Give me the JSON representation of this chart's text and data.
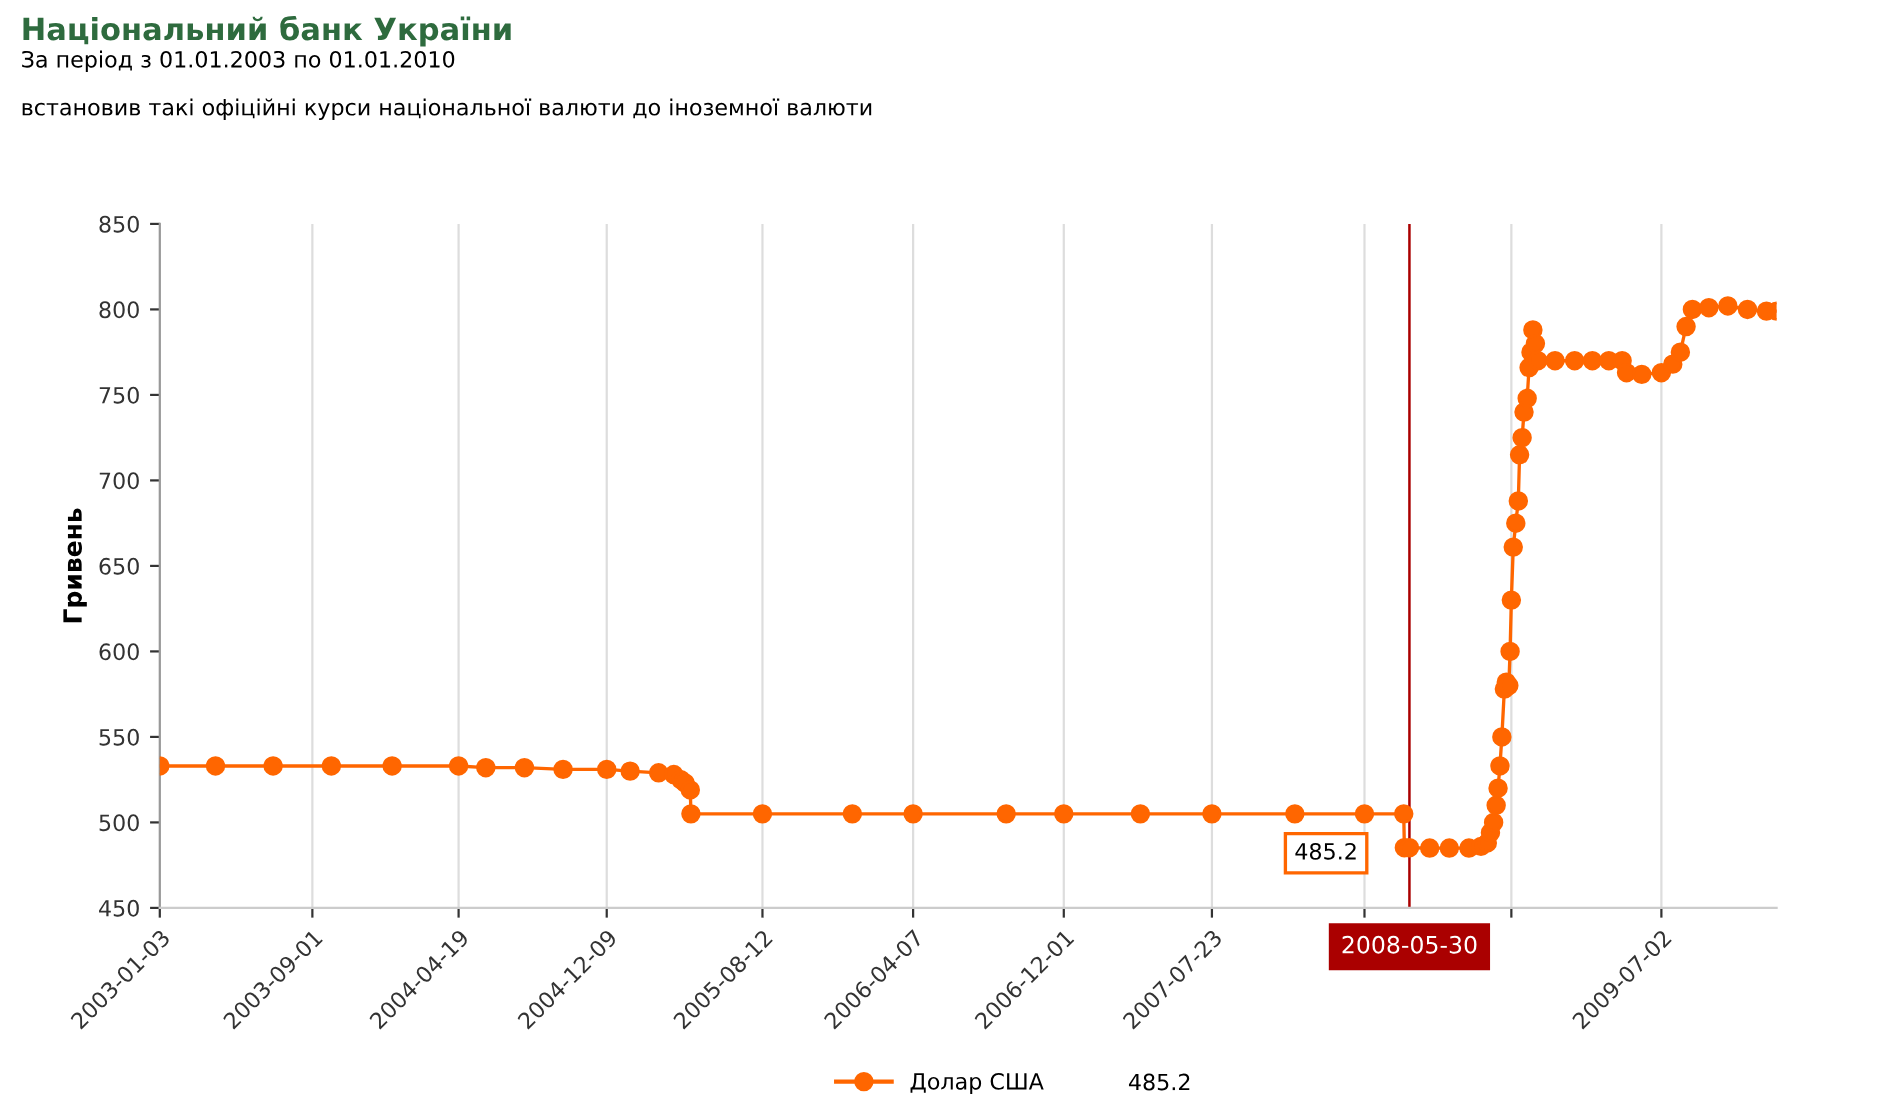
{
  "chart_data": {
    "type": "line",
    "title": "Національний банк України",
    "subtitle": "За період з 01.01.2003 по 01.01.2010",
    "ylabel": "Гривень",
    "annotations": [
      "встановив такі офіційні курси національної валюти до іноземної валюти",
      {
        "text": "485.2",
        "x": "2008-05-30",
        "y": 485.2
      },
      "485.2"
    ],
    "x": [
      "2003-01-03",
      "2003-04-01",
      "2003-07-01",
      "2003-10-01",
      "2004-01-05",
      "2004-04-19",
      "2004-06-01",
      "2004-08-01",
      "2004-10-01",
      "2004-12-09",
      "2005-01-15",
      "2005-03-01",
      "2005-03-25",
      "2005-04-05",
      "2005-04-12",
      "2005-04-20",
      "2005-04-21",
      "2005-08-12",
      "2006-01-01",
      "2006-04-07",
      "2006-09-01",
      "2006-12-01",
      "2007-04-01",
      "2007-07-23",
      "2007-12-01",
      "2008-03-20",
      "2008-05-21",
      "2008-05-22",
      "2008-05-30",
      "2008-07-01",
      "2008-08-01",
      "2008-09-01",
      "2008-09-20",
      "2008-09-30",
      "2008-10-05",
      "2008-10-10",
      "2008-10-14",
      "2008-10-17",
      "2008-10-20",
      "2008-10-23",
      "2008-10-27",
      "2008-10-30",
      "2008-11-03",
      "2008-11-05",
      "2008-11-07",
      "2008-11-10",
      "2008-11-14",
      "2008-11-18",
      "2008-11-20",
      "2008-11-24",
      "2008-11-27",
      "2008-12-02",
      "2008-12-05",
      "2008-12-08",
      "2008-12-11",
      "2008-12-15",
      "2008-12-19",
      "2009-01-15",
      "2009-02-15",
      "2009-03-15",
      "2009-04-10",
      "2009-05-01",
      "2009-05-08",
      "2009-06-01",
      "2009-07-02",
      "2009-07-20",
      "2009-08-01",
      "2009-08-10",
      "2009-08-20",
      "2009-09-15",
      "2009-10-15",
      "2009-11-15",
      "2009-12-15",
      "2009-12-31"
    ],
    "series": [
      {
        "name": "Долар США",
        "color": "#ff6600",
        "values": [
          533,
          533,
          533,
          533,
          533,
          533,
          532,
          532,
          531,
          531,
          530,
          529,
          528,
          525,
          523,
          519,
          505,
          505,
          505,
          505,
          505,
          505,
          505,
          505,
          505,
          505,
          505,
          485.2,
          485.2,
          485,
          485,
          485,
          486,
          488,
          494,
          500,
          510,
          520,
          533,
          550,
          578,
          582,
          580,
          600,
          630,
          661,
          675,
          688,
          715,
          725,
          740,
          748,
          766,
          775,
          788,
          780,
          770,
          770,
          770,
          770,
          770,
          770,
          763,
          762,
          763,
          768,
          775,
          790,
          800,
          801,
          802,
          800,
          799,
          799
        ]
      }
    ],
    "ylim": [
      450,
      850
    ],
    "yticks": [
      450,
      500,
      550,
      600,
      650,
      700,
      750,
      800,
      850
    ],
    "xlim": [
      "2003-01-03",
      "2009-12-31"
    ],
    "xticks": [
      {
        "value": "2003-01-03",
        "label": "2003-01-03"
      },
      {
        "value": "2003-09-01",
        "label": "2003-09-01"
      },
      {
        "value": "2004-04-19",
        "label": "2004-04-19"
      },
      {
        "value": "2004-12-09",
        "label": "2004-12-09"
      },
      {
        "value": "2005-08-12",
        "label": "2005-08-12"
      },
      {
        "value": "2006-04-07",
        "label": "2006-04-07"
      },
      {
        "value": "2006-12-01",
        "label": "2006-12-01"
      },
      {
        "value": "2007-07-23",
        "label": "2007-07-23"
      },
      {
        "value": "2008-03-20",
        "label": null
      },
      {
        "value": "2008-11-07",
        "label": null
      },
      {
        "value": "2009-07-02",
        "label": "2009-07-02"
      }
    ],
    "ref_lines": [
      {
        "axis": "x",
        "value": "2008-05-30",
        "label": "2008-05-30",
        "color": "#aa0000"
      }
    ],
    "grid": "x",
    "legend": "bottom",
    "marker": "circle",
    "line_style": "solid"
  }
}
